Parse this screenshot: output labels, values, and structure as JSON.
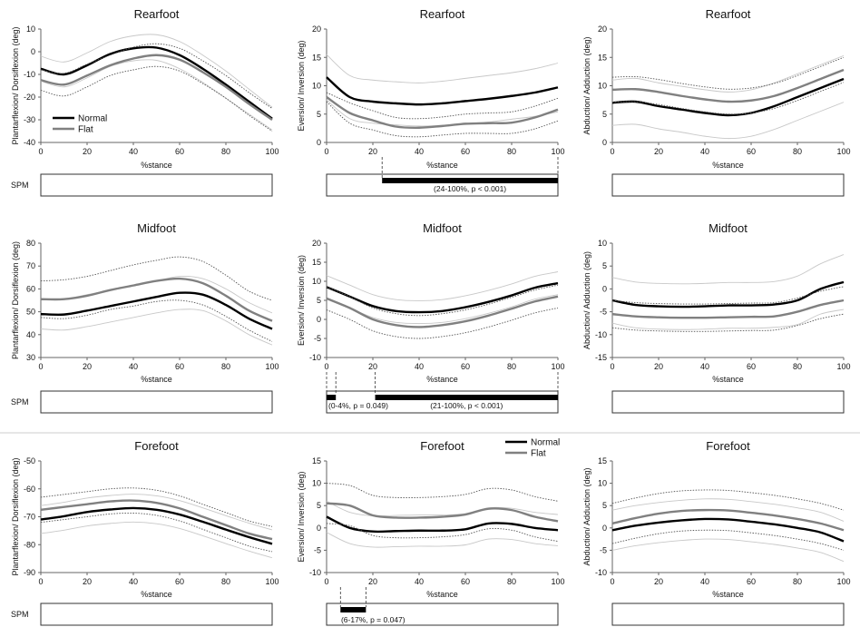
{
  "figure": {
    "legend": {
      "normal": "Normal",
      "flat": "Flat"
    },
    "spm_label": "SPM",
    "colors": {
      "normal": "#000000",
      "flat": "#808080",
      "band": "#c8c8c8",
      "band_dotted": "#555555",
      "separator": "#cccccc"
    }
  },
  "chart_data": [
    {
      "id": "rearfoot-sagittal",
      "type": "line",
      "title": "Rearfoot",
      "xlabel": "%stance",
      "ylabel": "Plantarflexion/ Dorsiflexion (deg)",
      "xlim": [
        0,
        100
      ],
      "ylim": [
        -40,
        10
      ],
      "x_ticks": [
        0,
        20,
        40,
        60,
        80,
        100
      ],
      "y_ticks": [
        -40,
        -30,
        -20,
        -10,
        0,
        10
      ],
      "x": [
        0,
        10,
        20,
        30,
        40,
        50,
        60,
        70,
        80,
        90,
        100
      ],
      "series": [
        {
          "name": "Normal",
          "mean": [
            -7.5,
            -10,
            -6,
            -1,
            1.5,
            1.8,
            -1.5,
            -7.5,
            -14.5,
            -22,
            -29.5
          ],
          "upper": [
            -2,
            -4.5,
            -0.5,
            4.5,
            7,
            7.5,
            4.5,
            -1.5,
            -8.5,
            -16.5,
            -24.5
          ],
          "lower": [
            -13,
            -15.5,
            -11.5,
            -6.5,
            -4,
            -3.8,
            -7.5,
            -13.5,
            -20.5,
            -27.5,
            -34.5
          ]
        },
        {
          "name": "Flat",
          "mean": [
            -12.5,
            -14.5,
            -10.5,
            -6,
            -3,
            -1.5,
            -3.5,
            -9,
            -15.5,
            -23,
            -30
          ],
          "upper": [
            -8,
            -9.5,
            -5.5,
            -1.5,
            2,
            3.5,
            1.5,
            -4,
            -10.5,
            -18,
            -25
          ],
          "lower": [
            -17,
            -19.5,
            -15.5,
            -10.5,
            -8,
            -6.5,
            -8.5,
            -14,
            -20.5,
            -28,
            -35
          ]
        }
      ],
      "legend_position": "lower-left",
      "spm": {
        "bars": [],
        "label": ""
      }
    },
    {
      "id": "rearfoot-frontal",
      "type": "line",
      "title": "Rearfoot",
      "xlabel": "%stance",
      "ylabel": "Eversion/ Inversion (deg)",
      "xlim": [
        0,
        100
      ],
      "ylim": [
        0,
        20
      ],
      "x_ticks": [
        0,
        20,
        40,
        60,
        80,
        100
      ],
      "y_ticks": [
        0,
        5,
        10,
        15,
        20
      ],
      "x": [
        0,
        10,
        20,
        30,
        40,
        50,
        60,
        70,
        80,
        90,
        100
      ],
      "series": [
        {
          "name": "Normal",
          "mean": [
            11.5,
            8,
            7.2,
            6.9,
            6.7,
            6.9,
            7.3,
            7.7,
            8.2,
            8.8,
            9.7
          ],
          "upper": [
            15.5,
            11.8,
            11.0,
            10.7,
            10.5,
            10.8,
            11.3,
            11.8,
            12.3,
            13,
            14
          ],
          "lower": [
            7.5,
            4.2,
            3.4,
            3.1,
            2.9,
            3.0,
            3.3,
            3.6,
            4.1,
            4.6,
            5.4
          ]
        },
        {
          "name": "Flat",
          "mean": [
            8,
            5.2,
            3.9,
            2.8,
            2.6,
            2.9,
            3.3,
            3.4,
            3.5,
            4.4,
            5.8
          ],
          "upper": [
            8.8,
            7.0,
            5.6,
            4.4,
            4.2,
            4.5,
            5.0,
            5.2,
            5.4,
            6.4,
            7.8
          ],
          "lower": [
            7.2,
            3.4,
            2.2,
            1.2,
            1.0,
            1.3,
            1.6,
            1.6,
            1.6,
            2.4,
            3.8
          ]
        }
      ],
      "spm": {
        "bars": [
          [
            24,
            100
          ]
        ],
        "label": "(24-100%, p < 0.001)"
      }
    },
    {
      "id": "rearfoot-transverse",
      "type": "line",
      "title": "Rearfoot",
      "xlabel": "%stance",
      "ylabel": "Abduction/ Adduction (deg)",
      "xlim": [
        0,
        100
      ],
      "ylim": [
        0,
        20
      ],
      "x_ticks": [
        0,
        20,
        40,
        60,
        80,
        100
      ],
      "y_ticks": [
        0,
        5,
        10,
        15,
        20
      ],
      "x": [
        0,
        10,
        20,
        30,
        40,
        50,
        60,
        70,
        80,
        90,
        100
      ],
      "series": [
        {
          "name": "Normal",
          "mean": [
            7,
            7.2,
            6.4,
            5.8,
            5.2,
            4.8,
            5.2,
            6.4,
            8,
            9.6,
            11.2
          ],
          "upper": [
            11,
            11.3,
            10.5,
            9.9,
            9.3,
            8.9,
            9.3,
            10.5,
            12.1,
            13.7,
            15.3
          ],
          "lower": [
            3,
            3.2,
            2.4,
            1.8,
            1.1,
            0.7,
            1.1,
            2.3,
            3.9,
            5.5,
            7.1
          ]
        },
        {
          "name": "Flat",
          "mean": [
            9.3,
            9.4,
            8.9,
            8.2,
            7.6,
            7.2,
            7.4,
            8.2,
            9.6,
            11.2,
            12.8
          ],
          "upper": [
            11.5,
            11.6,
            11.1,
            10.4,
            9.8,
            9.4,
            9.6,
            10.4,
            11.8,
            13.4,
            15
          ],
          "lower": [
            7.1,
            7.2,
            6.7,
            6.0,
            5.4,
            5.0,
            5.2,
            6.0,
            7.4,
            9.0,
            10.6
          ]
        }
      ],
      "spm": {
        "bars": [],
        "label": ""
      }
    },
    {
      "id": "midfoot-sagittal",
      "type": "line",
      "title": "Midfoot",
      "xlabel": "%stance",
      "ylabel": "Plantarflexion/ Dorsiflexion (deg)",
      "xlim": [
        0,
        100
      ],
      "ylim": [
        30,
        80
      ],
      "x_ticks": [
        0,
        20,
        40,
        60,
        80,
        100
      ],
      "y_ticks": [
        30,
        40,
        50,
        60,
        70,
        80
      ],
      "x": [
        0,
        10,
        20,
        30,
        40,
        50,
        60,
        70,
        80,
        90,
        100
      ],
      "series": [
        {
          "name": "Normal",
          "mean": [
            49,
            48.8,
            50.5,
            52.5,
            54.5,
            56.5,
            58.3,
            57.5,
            53,
            47,
            42.5
          ],
          "upper": [
            55.5,
            55.5,
            57.5,
            59.5,
            61.5,
            63.5,
            65.5,
            64.5,
            60,
            54,
            49.5
          ],
          "lower": [
            42.5,
            42,
            43.5,
            45.5,
            47.5,
            49.5,
            51,
            50.5,
            46,
            40,
            35.5
          ]
        },
        {
          "name": "Flat",
          "mean": [
            55.5,
            55.5,
            57,
            59.5,
            61.5,
            63.5,
            64.5,
            62.5,
            57,
            50.5,
            46
          ],
          "upper": [
            63.5,
            64,
            65.5,
            68,
            70.5,
            72.5,
            74,
            72,
            66,
            59,
            55
          ],
          "lower": [
            47.5,
            47,
            48.5,
            51,
            52.5,
            54.5,
            55,
            53,
            48,
            42,
            37
          ]
        }
      ],
      "spm": {
        "bars": [],
        "label": ""
      }
    },
    {
      "id": "midfoot-frontal",
      "type": "line",
      "title": "Midfoot",
      "xlabel": "%stance",
      "ylabel": "Eversion/ Inversion (deg)",
      "xlim": [
        0,
        100
      ],
      "ylim": [
        -10,
        20
      ],
      "x_ticks": [
        0,
        20,
        40,
        60,
        80,
        100
      ],
      "y_ticks": [
        -10,
        -5,
        0,
        5,
        10,
        15,
        20
      ],
      "x": [
        0,
        10,
        20,
        30,
        40,
        50,
        60,
        70,
        80,
        90,
        100
      ],
      "series": [
        {
          "name": "Normal",
          "mean": [
            8.5,
            6,
            3.5,
            2.2,
            1.9,
            2.2,
            3.2,
            4.6,
            6.3,
            8.3,
            9.5
          ],
          "upper": [
            11.5,
            9,
            6.5,
            5.2,
            4.9,
            5.2,
            6.2,
            7.6,
            9.3,
            11.3,
            12.5
          ],
          "lower": [
            5.5,
            3,
            0.5,
            -0.8,
            -1.1,
            -0.8,
            0.2,
            1.6,
            3.3,
            5.3,
            6.5
          ]
        },
        {
          "name": "Flat",
          "mean": [
            5.5,
            3,
            0,
            -1.5,
            -2,
            -1.5,
            -0.5,
            1,
            2.8,
            4.7,
            6
          ],
          "upper": [
            8.5,
            6,
            3,
            1.5,
            1,
            1.5,
            2.5,
            4,
            5.8,
            7.7,
            9
          ],
          "lower": [
            2.5,
            0,
            -3,
            -4.5,
            -5,
            -4.5,
            -3.5,
            -2,
            -0.2,
            1.7,
            3
          ]
        }
      ],
      "spm": {
        "bars": [
          [
            0,
            4
          ],
          [
            21,
            100
          ]
        ],
        "labels": [
          "(0-4%, p = 0.049)",
          "(21-100%, p < 0.001)"
        ]
      }
    },
    {
      "id": "midfoot-transverse",
      "type": "line",
      "title": "Midfoot",
      "xlabel": "%stance",
      "ylabel": "Abduction/ Adduction (deg)",
      "xlim": [
        0,
        100
      ],
      "ylim": [
        -15,
        10
      ],
      "x_ticks": [
        0,
        20,
        40,
        60,
        80,
        100
      ],
      "y_ticks": [
        -15,
        -10,
        -5,
        0,
        5,
        10
      ],
      "x": [
        0,
        10,
        20,
        30,
        40,
        50,
        60,
        70,
        80,
        90,
        100
      ],
      "series": [
        {
          "name": "Normal",
          "mean": [
            -2.5,
            -3.5,
            -3.8,
            -3.9,
            -3.8,
            -3.6,
            -3.6,
            -3.4,
            -2.5,
            0,
            1.5
          ],
          "upper": [
            2.5,
            1.5,
            1.2,
            1.1,
            1.2,
            1.4,
            1.4,
            1.6,
            2.8,
            5.5,
            7.5
          ],
          "lower": [
            -7.5,
            -8.5,
            -8.8,
            -8.9,
            -8.8,
            -8.6,
            -8.6,
            -8.4,
            -7.8,
            -5.5,
            -4.5
          ]
        },
        {
          "name": "Flat",
          "mean": [
            -5.5,
            -6,
            -6.2,
            -6.3,
            -6.3,
            -6.2,
            -6.1,
            -6,
            -5,
            -3.5,
            -2.5
          ],
          "upper": [
            -2.5,
            -3,
            -3.2,
            -3.3,
            -3.3,
            -3.2,
            -3.1,
            -3,
            -2,
            -0.5,
            0.5
          ],
          "lower": [
            -8.5,
            -9,
            -9.2,
            -9.3,
            -9.3,
            -9.2,
            -9.1,
            -9,
            -8,
            -6.5,
            -5.5
          ]
        }
      ],
      "spm": {
        "bars": [],
        "label": ""
      }
    },
    {
      "id": "forefoot-sagittal",
      "type": "line",
      "title": "Forefoot",
      "xlabel": "%stance",
      "ylabel": "Plantarflexion/ Dorsiflexion (deg)",
      "xlim": [
        0,
        100
      ],
      "ylim": [
        -90,
        -50
      ],
      "x_ticks": [
        0,
        20,
        40,
        60,
        80,
        100
      ],
      "y_ticks": [
        -90,
        -80,
        -70,
        -60,
        -50
      ],
      "x": [
        0,
        10,
        20,
        30,
        40,
        50,
        60,
        70,
        80,
        90,
        100
      ],
      "series": [
        {
          "name": "Normal",
          "mean": [
            -71,
            -69.8,
            -68.3,
            -67.4,
            -66.9,
            -67.5,
            -69.2,
            -71.8,
            -74.6,
            -77.3,
            -79.7
          ],
          "upper": [
            -66,
            -64.8,
            -63.3,
            -62.4,
            -61.9,
            -62.5,
            -64.2,
            -66.8,
            -69.6,
            -72.3,
            -74.7
          ],
          "lower": [
            -76,
            -74.8,
            -73.3,
            -72.4,
            -71.9,
            -72.5,
            -74.2,
            -76.8,
            -79.6,
            -82.3,
            -84.7
          ]
        },
        {
          "name": "Flat",
          "mean": [
            -67.5,
            -66.5,
            -65.5,
            -64.5,
            -64.2,
            -65,
            -67,
            -70,
            -73,
            -76,
            -78
          ],
          "upper": [
            -63,
            -62,
            -61,
            -60,
            -59.7,
            -60.5,
            -62.5,
            -65.5,
            -68.5,
            -71.5,
            -73.5
          ],
          "lower": [
            -72,
            -71,
            -70,
            -69,
            -68.7,
            -69.5,
            -71.5,
            -74.5,
            -77.5,
            -80.5,
            -82.5
          ]
        }
      ],
      "spm": {
        "bars": [],
        "label": ""
      }
    },
    {
      "id": "forefoot-frontal",
      "type": "line",
      "title": "Forefoot",
      "xlabel": "%stance",
      "ylabel": "Eversion/ Inversion (deg)",
      "xlim": [
        0,
        100
      ],
      "ylim": [
        -10,
        15
      ],
      "x_ticks": [
        0,
        20,
        40,
        60,
        80,
        100
      ],
      "y_ticks": [
        -10,
        -5,
        0,
        5,
        10,
        15
      ],
      "x": [
        0,
        10,
        20,
        30,
        40,
        50,
        60,
        70,
        80,
        90,
        100
      ],
      "series": [
        {
          "name": "Normal",
          "mean": [
            2.5,
            0,
            -0.8,
            -0.7,
            -0.6,
            -0.6,
            -0.3,
            1,
            0.9,
            0,
            -0.5
          ],
          "upper": [
            6,
            3.5,
            2.7,
            2.8,
            2.9,
            2.9,
            3.2,
            4.5,
            4.4,
            3.5,
            3
          ],
          "lower": [
            -1,
            -3.5,
            -4.3,
            -4.2,
            -4.1,
            -4.1,
            -3.8,
            -2.5,
            -2.6,
            -3.5,
            -4
          ]
        },
        {
          "name": "Flat",
          "mean": [
            5.5,
            5,
            2.8,
            2.3,
            2.3,
            2.5,
            3,
            4.3,
            4,
            2.5,
            1.5
          ],
          "upper": [
            10,
            9.5,
            7.3,
            6.8,
            6.8,
            7,
            7.5,
            8.8,
            8.5,
            7,
            6
          ],
          "lower": [
            1,
            0.5,
            -1.7,
            -2.2,
            -2.2,
            -2,
            -1.5,
            -0.2,
            -0.5,
            -2,
            -3
          ]
        }
      ],
      "legend_position": "top-right",
      "spm": {
        "bars": [
          [
            6,
            17
          ]
        ],
        "label": "(6-17%, p = 0.047)"
      }
    },
    {
      "id": "forefoot-transverse",
      "type": "line",
      "title": "Forefoot",
      "xlabel": "%stance",
      "ylabel": "Abduction/ Adduction (deg)",
      "xlim": [
        0,
        100
      ],
      "ylim": [
        -10,
        15
      ],
      "x_ticks": [
        0,
        20,
        40,
        60,
        80,
        100
      ],
      "y_ticks": [
        -10,
        -5,
        0,
        5,
        10,
        15
      ],
      "x": [
        0,
        10,
        20,
        30,
        40,
        50,
        60,
        70,
        80,
        90,
        100
      ],
      "series": [
        {
          "name": "Normal",
          "mean": [
            -0.5,
            0.5,
            1.2,
            1.7,
            2,
            1.9,
            1.4,
            0.8,
            0,
            -1,
            -3
          ],
          "upper": [
            4,
            5,
            5.7,
            6.2,
            6.5,
            6.4,
            5.9,
            5.3,
            4.5,
            3.5,
            1.5
          ],
          "lower": [
            -5,
            -4,
            -3.3,
            -2.8,
            -2.5,
            -2.6,
            -3.1,
            -3.7,
            -4.5,
            -5.5,
            -7.5
          ]
        },
        {
          "name": "Flat",
          "mean": [
            1,
            2.2,
            3.2,
            3.8,
            4,
            3.9,
            3.4,
            2.8,
            2,
            1,
            -0.5
          ],
          "upper": [
            5.5,
            6.7,
            7.7,
            8.3,
            8.5,
            8.4,
            7.9,
            7.3,
            6.5,
            5.5,
            4
          ],
          "lower": [
            -3.5,
            -2.3,
            -1.3,
            -0.7,
            -0.5,
            -0.6,
            -1.1,
            -1.7,
            -2.5,
            -3.5,
            -5
          ]
        }
      ],
      "spm": {
        "bars": [],
        "label": ""
      }
    }
  ]
}
